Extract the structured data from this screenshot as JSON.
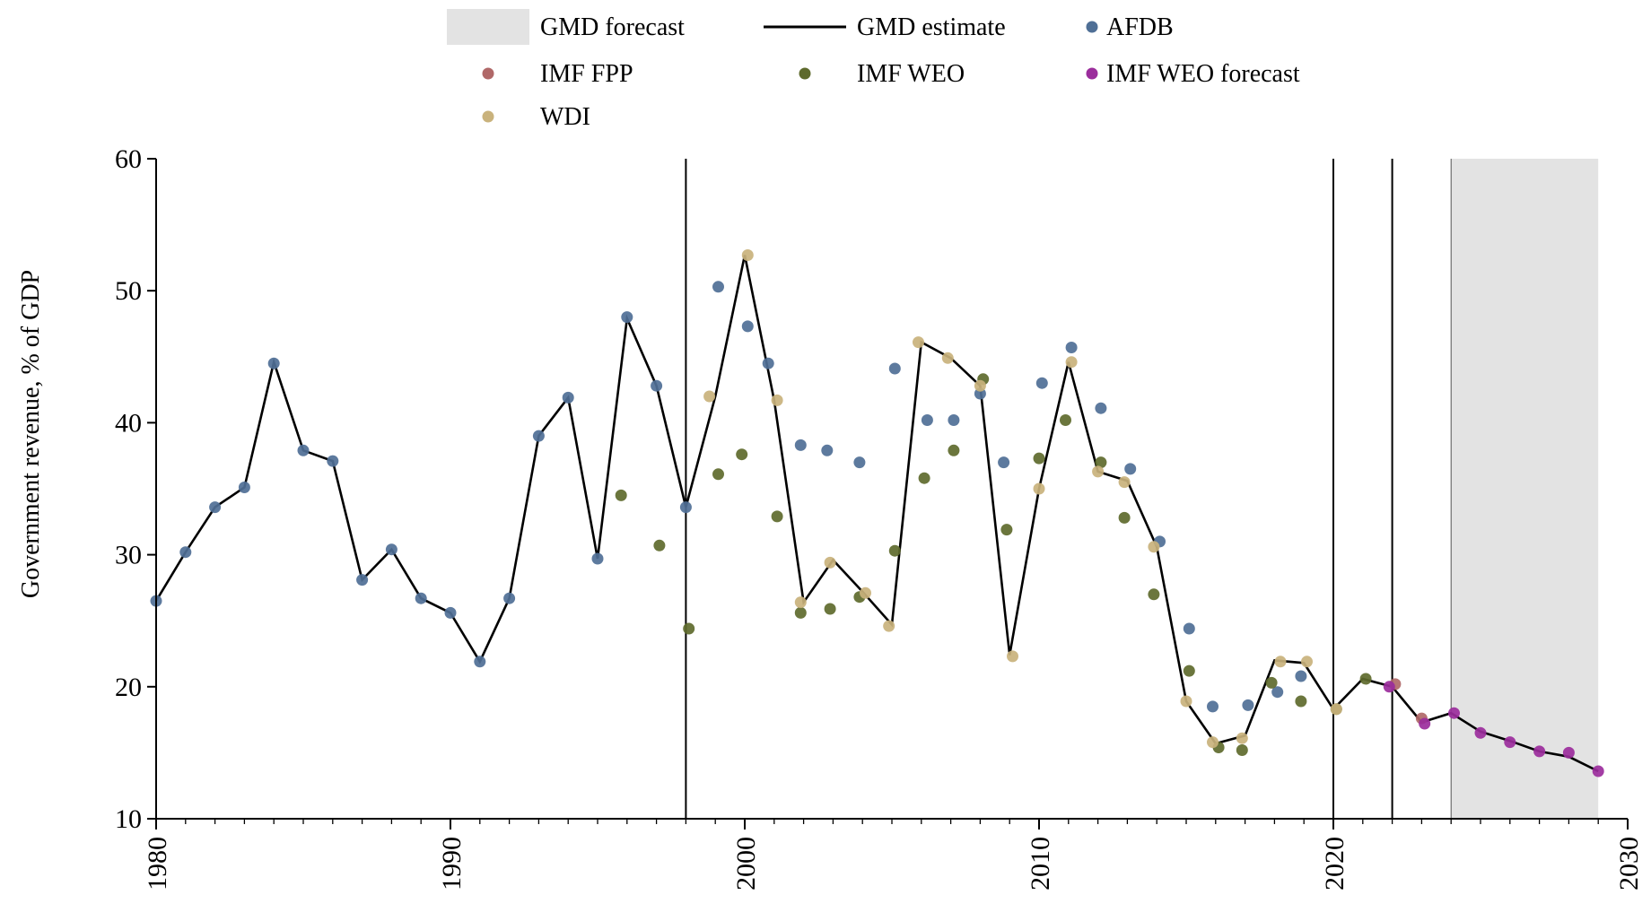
{
  "chart_data": {
    "type": "scatter",
    "title": "",
    "xlabel": "",
    "ylabel": "Government revenue, % of GDP",
    "xlim": [
      1980,
      2030
    ],
    "ylim": [
      10,
      60
    ],
    "x_ticks": [
      "1980",
      "1990",
      "2000",
      "2010",
      "2020",
      "2030"
    ],
    "y_ticks": [
      "10",
      "20",
      "30",
      "40",
      "50",
      "60"
    ],
    "grid": false,
    "legend_position": "top",
    "forecast_region": {
      "label": "GMD forecast",
      "x_start": 2024,
      "x_end": 2029,
      "color": "#e3e3e3"
    },
    "vertical_lines": [
      1998,
      2020,
      2022
    ],
    "series": [
      {
        "name": "GMD estimate",
        "kind": "line",
        "color": "#000000",
        "points": [
          [
            1980,
            26.5
          ],
          [
            1981,
            30.2
          ],
          [
            1982,
            33.6
          ],
          [
            1983,
            35.1
          ],
          [
            1984,
            44.6
          ],
          [
            1985,
            37.9
          ],
          [
            1986,
            37.1
          ],
          [
            1987,
            28.1
          ],
          [
            1988,
            30.4
          ],
          [
            1989,
            26.7
          ],
          [
            1990,
            25.6
          ],
          [
            1991,
            21.9
          ],
          [
            1992,
            26.7
          ],
          [
            1993,
            39.0
          ],
          [
            1994,
            41.9
          ],
          [
            1995,
            29.7
          ],
          [
            1996,
            47.9
          ],
          [
            1997,
            42.8
          ],
          [
            1998,
            33.6
          ],
          [
            1999,
            42.0
          ],
          [
            2000,
            52.7
          ],
          [
            2001,
            41.7
          ],
          [
            2002,
            26.4
          ],
          [
            2003,
            29.6
          ],
          [
            2004,
            27.2
          ],
          [
            2005,
            24.7
          ],
          [
            2006,
            46.1
          ],
          [
            2007,
            44.9
          ],
          [
            2008,
            42.8
          ],
          [
            2009,
            22.4
          ],
          [
            2010,
            35.0
          ],
          [
            2011,
            44.6
          ],
          [
            2012,
            36.3
          ],
          [
            2013,
            35.6
          ],
          [
            2014,
            30.6
          ],
          [
            2015,
            18.9
          ],
          [
            2016,
            15.7
          ],
          [
            2017,
            16.3
          ],
          [
            2018,
            22.0
          ],
          [
            2019,
            21.8
          ],
          [
            2020,
            18.3
          ],
          [
            2021,
            20.6
          ],
          [
            2022,
            20.0
          ],
          [
            2023,
            17.3
          ],
          [
            2024,
            18.0
          ],
          [
            2025,
            16.6
          ],
          [
            2026,
            15.9
          ],
          [
            2027,
            15.1
          ],
          [
            2028,
            14.7
          ],
          [
            2029,
            13.6
          ]
        ]
      },
      {
        "name": "AFDB",
        "kind": "scatter",
        "color": "#4f6f96",
        "points": [
          [
            1980,
            26.5
          ],
          [
            1981,
            30.2
          ],
          [
            1982,
            33.6
          ],
          [
            1983,
            35.1
          ],
          [
            1984,
            44.5
          ],
          [
            1985,
            37.9
          ],
          [
            1986,
            37.1
          ],
          [
            1987,
            28.1
          ],
          [
            1988,
            30.4
          ],
          [
            1989,
            26.7
          ],
          [
            1990,
            25.6
          ],
          [
            1991,
            21.9
          ],
          [
            1992,
            26.7
          ],
          [
            1993,
            39.0
          ],
          [
            1994,
            41.9
          ],
          [
            1995,
            29.7
          ],
          [
            1996,
            48.0
          ],
          [
            1997,
            42.8
          ],
          [
            1998,
            33.6
          ],
          [
            1999.1,
            50.3
          ],
          [
            2000.1,
            47.3
          ],
          [
            2000.8,
            44.5
          ],
          [
            2001.9,
            38.3
          ],
          [
            2002.8,
            37.9
          ],
          [
            2003.9,
            37.0
          ],
          [
            2005.1,
            44.1
          ],
          [
            2006.2,
            40.2
          ],
          [
            2007.1,
            40.2
          ],
          [
            2008,
            42.2
          ],
          [
            2008.8,
            37.0
          ],
          [
            2010.1,
            43.0
          ],
          [
            2011.1,
            45.7
          ],
          [
            2012.1,
            41.1
          ],
          [
            2013.1,
            36.5
          ],
          [
            2014.1,
            31.0
          ],
          [
            2015.1,
            24.4
          ],
          [
            2015.9,
            18.5
          ],
          [
            2017.1,
            18.6
          ],
          [
            2018.1,
            19.6
          ],
          [
            2018.9,
            20.8
          ]
        ]
      },
      {
        "name": "IMF FPP",
        "kind": "scatter",
        "color": "#b06868",
        "points": [
          [
            2022.1,
            20.2
          ],
          [
            2023,
            17.6
          ]
        ]
      },
      {
        "name": "IMF WEO",
        "kind": "scatter",
        "color": "#5e6a2c",
        "points": [
          [
            1995.8,
            34.5
          ],
          [
            1997.1,
            30.7
          ],
          [
            1998.1,
            24.4
          ],
          [
            1999.1,
            36.1
          ],
          [
            1999.9,
            37.6
          ],
          [
            2001.1,
            32.9
          ],
          [
            2001.9,
            25.6
          ],
          [
            2002.9,
            25.9
          ],
          [
            2003.9,
            26.8
          ],
          [
            2005.1,
            30.3
          ],
          [
            2006.1,
            35.8
          ],
          [
            2007.1,
            37.9
          ],
          [
            2008.1,
            43.3
          ],
          [
            2008.9,
            31.9
          ],
          [
            2010,
            37.3
          ],
          [
            2010.9,
            40.2
          ],
          [
            2012.1,
            37.0
          ],
          [
            2012.9,
            32.8
          ],
          [
            2013.9,
            27.0
          ],
          [
            2015.1,
            21.2
          ],
          [
            2016.1,
            15.4
          ],
          [
            2016.9,
            15.2
          ],
          [
            2017.9,
            20.3
          ],
          [
            2018.9,
            18.9
          ],
          [
            2020.1,
            18.3
          ],
          [
            2021.1,
            20.6
          ]
        ]
      },
      {
        "name": "IMF WEO forecast",
        "kind": "scatter",
        "color": "#9b2d9c",
        "points": [
          [
            2021.9,
            20.0
          ],
          [
            2023.1,
            17.2
          ],
          [
            2024.1,
            18.0
          ],
          [
            2025,
            16.5
          ],
          [
            2026,
            15.8
          ],
          [
            2027,
            15.1
          ],
          [
            2028,
            15.0
          ],
          [
            2029,
            13.6
          ]
        ]
      },
      {
        "name": "WDI",
        "kind": "scatter",
        "color": "#c9b27c",
        "points": [
          [
            1998.8,
            42.0
          ],
          [
            2000.1,
            52.7
          ],
          [
            2001.1,
            41.7
          ],
          [
            2001.9,
            26.4
          ],
          [
            2002.9,
            29.4
          ],
          [
            2004.1,
            27.1
          ],
          [
            2004.9,
            24.6
          ],
          [
            2005.9,
            46.1
          ],
          [
            2006.9,
            44.9
          ],
          [
            2008,
            42.8
          ],
          [
            2009.1,
            22.3
          ],
          [
            2010,
            35.0
          ],
          [
            2011.1,
            44.6
          ],
          [
            2012,
            36.3
          ],
          [
            2012.9,
            35.5
          ],
          [
            2013.9,
            30.6
          ],
          [
            2015,
            18.9
          ],
          [
            2015.9,
            15.8
          ],
          [
            2016.9,
            16.1
          ],
          [
            2018.2,
            21.9
          ],
          [
            2019.1,
            21.9
          ],
          [
            2020.1,
            18.3
          ]
        ]
      }
    ]
  }
}
